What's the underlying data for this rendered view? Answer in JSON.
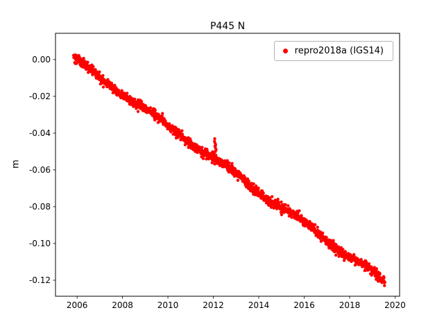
{
  "chart_data": {
    "type": "scatter",
    "title": "P445 N",
    "ylabel": "m",
    "xlabel": "",
    "legend": "repro2018a (IGS14)",
    "marker_color": "#ff0000",
    "xlim": [
      2005.05,
      2020.2
    ],
    "ylim": [
      -0.1287,
      0.0143
    ],
    "xticks": [
      2006,
      2008,
      2010,
      2012,
      2014,
      2016,
      2018,
      2020
    ],
    "yticks": [
      0.0,
      -0.02,
      -0.04,
      -0.06,
      -0.08,
      -0.1,
      -0.12
    ],
    "grid": false,
    "legend_position": "upper right",
    "series": [
      {
        "name": "repro2018a (IGS14)",
        "trend": {
          "x_start": 2005.85,
          "x_end": 2019.55,
          "y_start": 0.0005,
          "y_end": -0.1205
        },
        "slope_m_per_yr": -0.00883,
        "noise_std": 0.0013,
        "wiggle_amp": 0.0012,
        "wiggle_period_yr": 3.2,
        "n_points": 1500,
        "seed": 42,
        "outlier_rate": 0.012,
        "outlier_amp": 0.0042
      }
    ],
    "anomaly_points": [
      [
        2012.05,
        -0.0445
      ],
      [
        2012.06,
        -0.043
      ],
      [
        2012.07,
        -0.047
      ],
      [
        2012.08,
        -0.0455
      ],
      [
        2012.09,
        -0.05
      ],
      [
        2012.09,
        -0.048
      ],
      [
        2012.1,
        -0.0465
      ],
      [
        2012.11,
        -0.052
      ],
      [
        2012.12,
        -0.049
      ],
      [
        2012.13,
        -0.053
      ]
    ]
  }
}
